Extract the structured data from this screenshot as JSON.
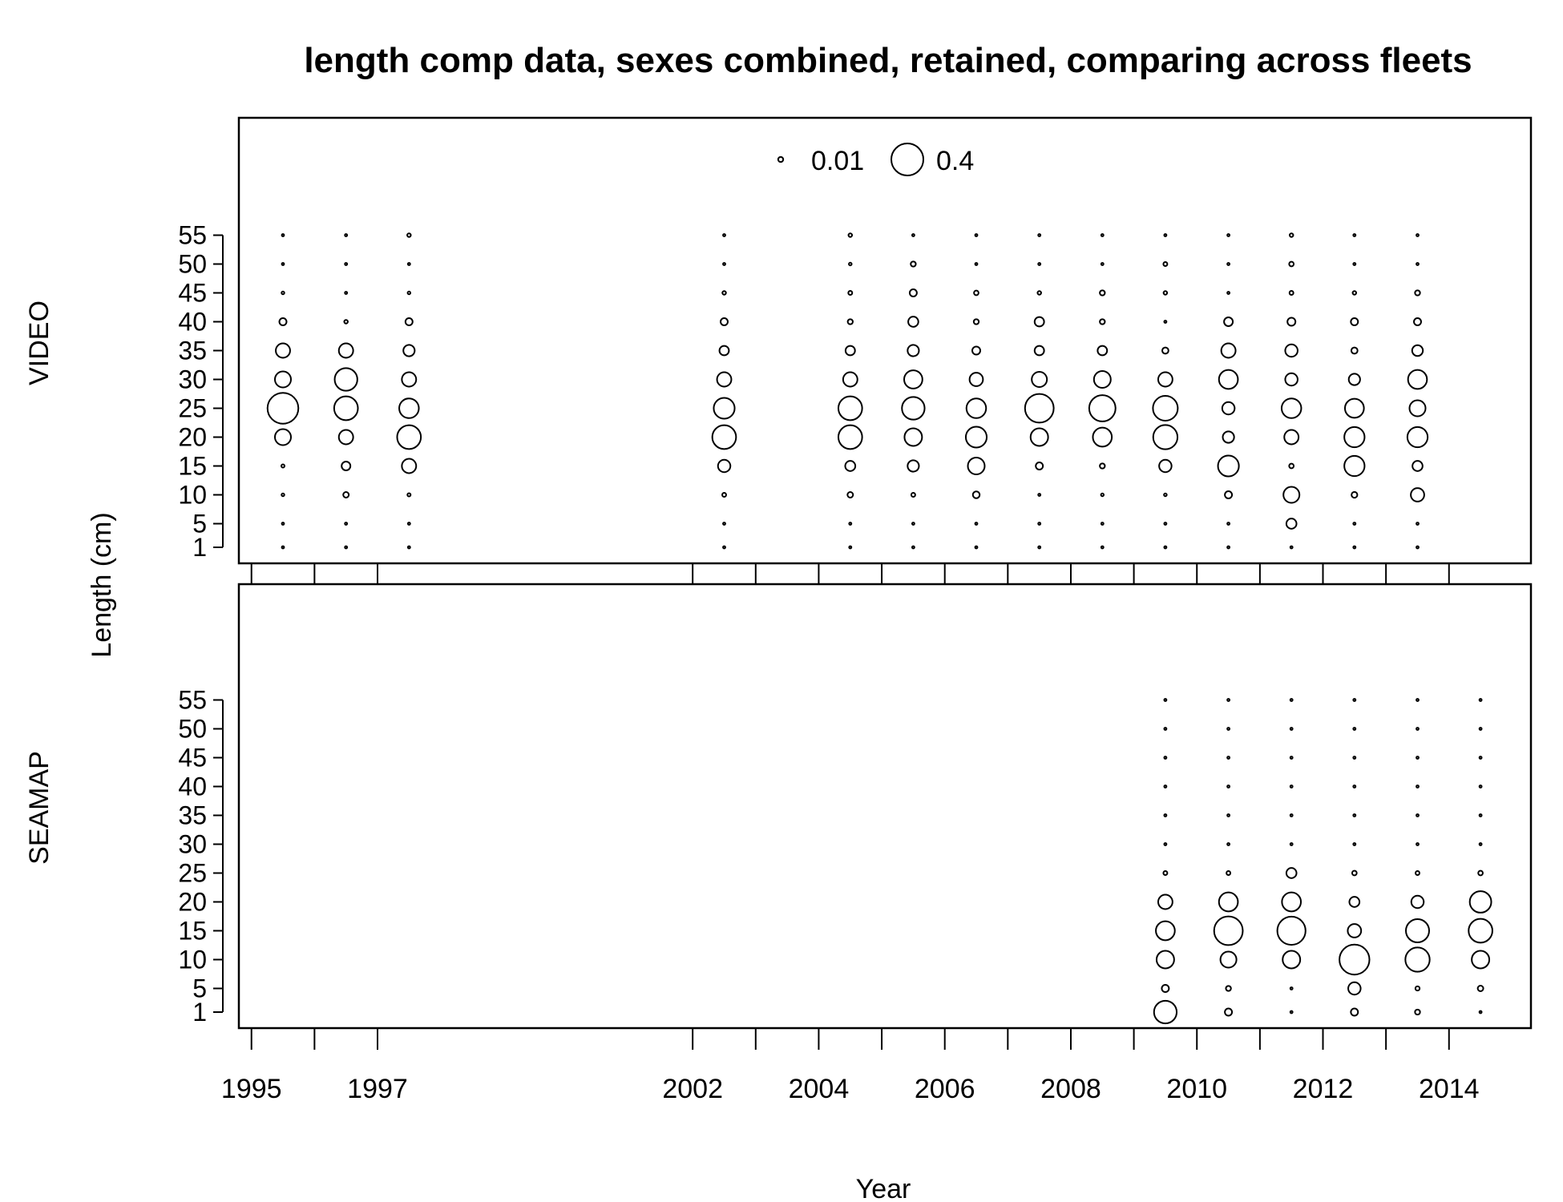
{
  "chart_data": {
    "type": "scatter",
    "title": "length comp data, sexes combined, retained, comparing across fleets",
    "xlabel": "Year",
    "ylabel": "Length (cm)",
    "x_ticks": [
      "1995",
      "1997",
      "2002",
      "2004",
      "2006",
      "2008",
      "2010",
      "2012",
      "2014"
    ],
    "x_tick_years": [
      1995,
      1996,
      1997,
      2002,
      2003,
      2004,
      2005,
      2006,
      2007,
      2008,
      2009,
      2010,
      2011,
      2012,
      2013,
      2014
    ],
    "xlim": [
      1994.8,
      2015.3
    ],
    "legend": {
      "labels": [
        "0.01",
        "0.4"
      ],
      "values": [
        0.01,
        0.4
      ],
      "position": "top"
    },
    "bin_labels": [
      "1",
      "5",
      "10",
      "15",
      "20",
      "25",
      "30",
      "35",
      "40",
      "45",
      "50",
      "55"
    ],
    "size_scale_max": 0.4,
    "panels": [
      {
        "name": "VIDEO",
        "years": [
          1995.5,
          1996.5,
          1997.5,
          2002.5,
          2004.5,
          2005.5,
          2006.5,
          2007.5,
          2008.5,
          2009.5,
          2010.5,
          2011.5,
          2012.5,
          2013.5
        ],
        "values": [
          [
            0.002,
            0.002,
            0.003,
            0.004,
            0.1,
            0.37,
            0.1,
            0.08,
            0.02,
            0.003,
            0.002,
            0.002
          ],
          [
            0.002,
            0.002,
            0.012,
            0.03,
            0.08,
            0.22,
            0.2,
            0.08,
            0.005,
            0.002,
            0.002,
            0.002
          ],
          [
            0.002,
            0.002,
            0.004,
            0.08,
            0.22,
            0.15,
            0.08,
            0.05,
            0.02,
            0.003,
            0.002,
            0.005
          ],
          [
            0.002,
            0.002,
            0.006,
            0.06,
            0.22,
            0.17,
            0.08,
            0.035,
            0.02,
            0.005,
            0.002,
            0.002
          ],
          [
            0.002,
            0.002,
            0.012,
            0.04,
            0.22,
            0.22,
            0.08,
            0.035,
            0.01,
            0.006,
            0.003,
            0.005
          ],
          [
            0.002,
            0.002,
            0.006,
            0.05,
            0.12,
            0.2,
            0.13,
            0.05,
            0.04,
            0.02,
            0.01,
            0.002
          ],
          [
            0.002,
            0.002,
            0.018,
            0.11,
            0.17,
            0.15,
            0.07,
            0.025,
            0.01,
            0.008,
            0.002,
            0.002
          ],
          [
            0.002,
            0.002,
            0.002,
            0.02,
            0.12,
            0.32,
            0.09,
            0.035,
            0.035,
            0.005,
            0.002,
            0.002
          ],
          [
            0.002,
            0.002,
            0.003,
            0.01,
            0.14,
            0.27,
            0.11,
            0.035,
            0.01,
            0.01,
            0.002,
            0.002
          ],
          [
            0.002,
            0.002,
            0.003,
            0.06,
            0.23,
            0.24,
            0.08,
            0.015,
            0.002,
            0.005,
            0.006,
            0.002
          ],
          [
            0.002,
            0.002,
            0.02,
            0.17,
            0.05,
            0.06,
            0.14,
            0.08,
            0.03,
            0.002,
            0.002,
            0.002
          ],
          [
            0.002,
            0.04,
            0.1,
            0.008,
            0.08,
            0.15,
            0.06,
            0.06,
            0.025,
            0.006,
            0.008,
            0.005
          ],
          [
            0.002,
            0.002,
            0.013,
            0.16,
            0.16,
            0.14,
            0.05,
            0.015,
            0.02,
            0.005,
            0.002,
            0.002
          ],
          [
            0.002,
            0.002,
            0.07,
            0.04,
            0.16,
            0.1,
            0.14,
            0.045,
            0.02,
            0.01,
            0.002,
            0.002
          ]
        ]
      },
      {
        "name": "SEAMAP",
        "years": [
          2009.5,
          2010.5,
          2011.5,
          2012.5,
          2013.5,
          2014.5
        ],
        "values": [
          [
            0.2,
            0.02,
            0.12,
            0.14,
            0.08,
            0.006,
            0.002,
            0.002,
            0.002,
            0.002,
            0.002,
            0.002
          ],
          [
            0.02,
            0.01,
            0.1,
            0.32,
            0.14,
            0.006,
            0.002,
            0.002,
            0.002,
            0.002,
            0.002,
            0.002
          ],
          [
            0.002,
            0.002,
            0.12,
            0.31,
            0.14,
            0.04,
            0.002,
            0.002,
            0.002,
            0.002,
            0.002,
            0.002
          ],
          [
            0.02,
            0.06,
            0.35,
            0.07,
            0.04,
            0.008,
            0.002,
            0.002,
            0.002,
            0.002,
            0.002,
            0.002
          ],
          [
            0.01,
            0.007,
            0.23,
            0.21,
            0.06,
            0.006,
            0.002,
            0.002,
            0.002,
            0.002,
            0.002,
            0.002
          ],
          [
            0.002,
            0.012,
            0.12,
            0.22,
            0.18,
            0.008,
            0.002,
            0.002,
            0.002,
            0.002,
            0.002,
            0.002
          ]
        ]
      }
    ]
  }
}
